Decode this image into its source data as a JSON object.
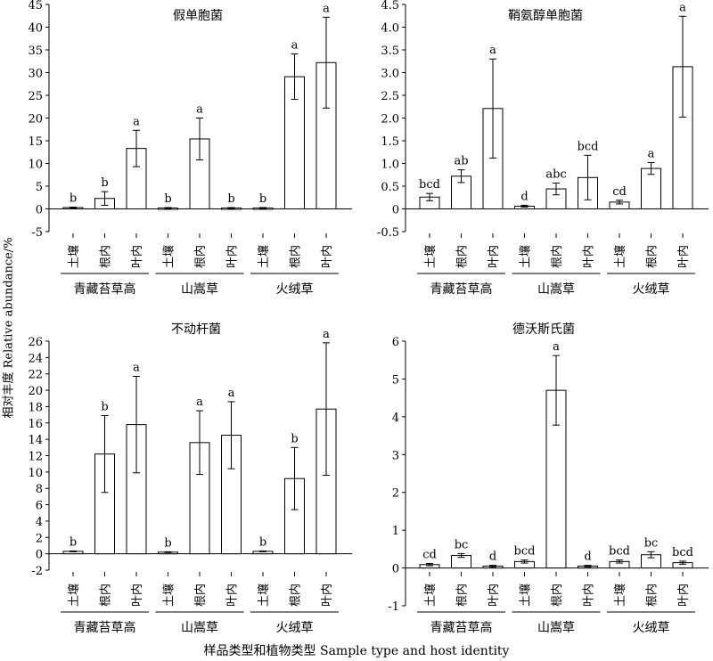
{
  "figure": {
    "ylabel": "相对丰度 Relative abundance/%",
    "xlabel": "样品类型和植物类型 Sample type and host identity"
  },
  "chart_data": [
    {
      "type": "bar",
      "title": "假单胞菌",
      "ylim": [
        -5,
        45
      ],
      "yticks": [
        -5,
        0,
        5,
        10,
        15,
        20,
        25,
        30,
        35,
        40,
        45
      ],
      "groups": [
        {
          "name": "青藏苔草高",
          "categories": [
            "土壤",
            "根内",
            "叶内"
          ]
        },
        {
          "name": "山嵩草",
          "categories": [
            "土壤",
            "根内",
            "叶内"
          ]
        },
        {
          "name": "火绒草",
          "categories": [
            "土壤",
            "根内",
            "叶内"
          ]
        }
      ],
      "values": [
        0.3,
        2.3,
        13.3,
        0.2,
        15.4,
        0.2,
        0.2,
        29.1,
        32.2
      ],
      "errors": [
        0.1,
        1.5,
        4.0,
        0.1,
        4.6,
        0.1,
        0.1,
        5.0,
        10.0
      ],
      "letters": [
        "b",
        "b",
        "a",
        "b",
        "a",
        "b",
        "b",
        "a",
        "a"
      ]
    },
    {
      "type": "bar",
      "title": "鞘氨醇单胞菌",
      "ylim": [
        -0.5,
        4.5
      ],
      "yticks": [
        -0.5,
        0,
        0.5,
        1.0,
        1.5,
        2.0,
        2.5,
        3.0,
        3.5,
        4.0,
        4.5
      ],
      "groups": [
        {
          "name": "青藏苔草高",
          "categories": [
            "土壤",
            "根内",
            "叶内"
          ]
        },
        {
          "name": "山嵩草",
          "categories": [
            "土壤",
            "根内",
            "叶内"
          ]
        },
        {
          "name": "火绒草",
          "categories": [
            "土壤",
            "根内",
            "叶内"
          ]
        }
      ],
      "values": [
        0.26,
        0.72,
        2.21,
        0.06,
        0.44,
        0.69,
        0.15,
        0.89,
        3.13
      ],
      "errors": [
        0.08,
        0.14,
        1.09,
        0.02,
        0.13,
        0.49,
        0.04,
        0.13,
        1.11
      ],
      "letters": [
        "bcd",
        "ab",
        "a",
        "d",
        "abc",
        "bcd",
        "cd",
        "a",
        "a"
      ]
    },
    {
      "type": "bar",
      "title": "不动杆菌",
      "ylim": [
        -2,
        26
      ],
      "yticks": [
        -2,
        0,
        2,
        4,
        6,
        8,
        10,
        12,
        14,
        16,
        18,
        20,
        22,
        24,
        26
      ],
      "groups": [
        {
          "name": "青藏苔草高",
          "categories": [
            "土壤",
            "根内",
            "叶内"
          ]
        },
        {
          "name": "山嵩草",
          "categories": [
            "土壤",
            "根内",
            "叶内"
          ]
        },
        {
          "name": "火绒草",
          "categories": [
            "土壤",
            "根内",
            "叶内"
          ]
        }
      ],
      "values": [
        0.3,
        12.2,
        15.8,
        0.2,
        13.6,
        14.5,
        0.3,
        9.2,
        17.7
      ],
      "errors": [
        0.05,
        4.7,
        5.9,
        0.05,
        3.9,
        4.1,
        0.05,
        3.8,
        8.1
      ],
      "letters": [
        "b",
        "b",
        "a",
        "b",
        "a",
        "a",
        "b",
        "b",
        "a"
      ]
    },
    {
      "type": "bar",
      "title": "德沃斯氏菌",
      "ylim": [
        -1,
        6
      ],
      "yticks": [
        -1,
        0,
        1,
        2,
        3,
        4,
        5,
        6
      ],
      "groups": [
        {
          "name": "青藏苔草高",
          "categories": [
            "土壤",
            "根内",
            "叶内"
          ]
        },
        {
          "name": "山嵩草",
          "categories": [
            "土壤",
            "根内",
            "叶内"
          ]
        },
        {
          "name": "火绒草",
          "categories": [
            "土壤",
            "根内",
            "叶内"
          ]
        }
      ],
      "values": [
        0.09,
        0.33,
        0.05,
        0.17,
        4.7,
        0.05,
        0.17,
        0.35,
        0.14
      ],
      "errors": [
        0.03,
        0.05,
        0.02,
        0.04,
        0.92,
        0.02,
        0.04,
        0.08,
        0.04
      ],
      "letters": [
        "cd",
        "bc",
        "d",
        "bcd",
        "a",
        "d",
        "bcd",
        "bc",
        "bcd"
      ]
    }
  ]
}
